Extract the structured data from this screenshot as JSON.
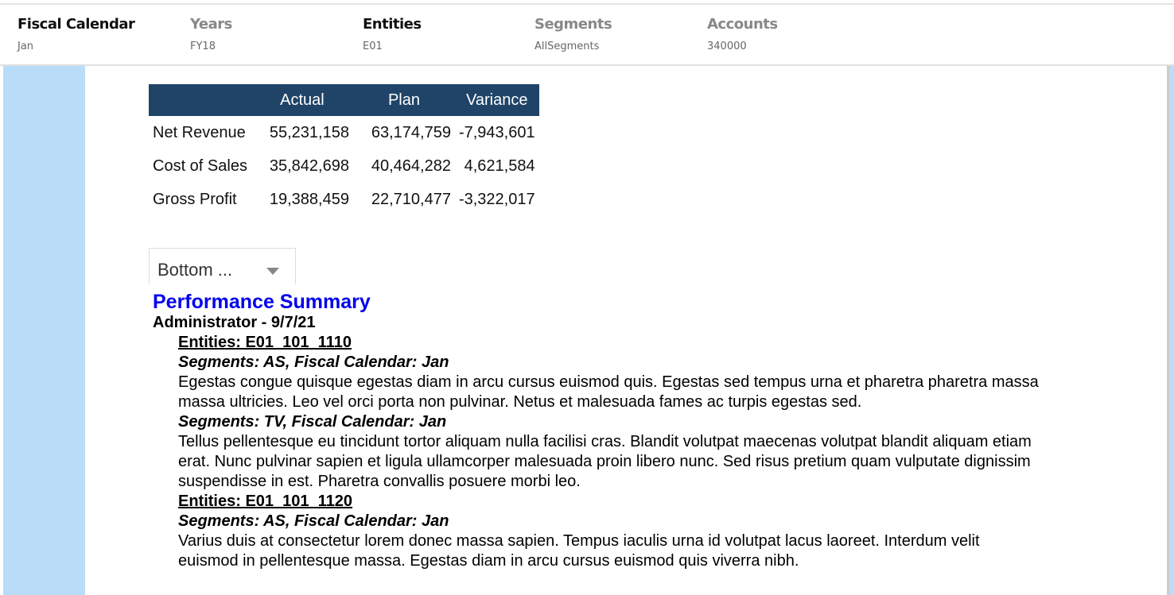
{
  "pov": [
    {
      "label": "Fiscal Calendar",
      "value": "Jan",
      "active": true
    },
    {
      "label": "Years",
      "value": "FY18",
      "active": false
    },
    {
      "label": "Entities",
      "value": "E01",
      "active": true
    },
    {
      "label": "Segments",
      "value": "AllSegments",
      "active": false
    },
    {
      "label": "Accounts",
      "value": "340000",
      "active": false
    }
  ],
  "table": {
    "headers": [
      "",
      "Actual",
      "Plan",
      "Variance"
    ],
    "rows": [
      [
        "Net Revenue",
        "55,231,158",
        "63,174,759",
        "-7,943,601"
      ],
      [
        "Cost of Sales",
        "35,842,698",
        "40,464,282",
        "4,621,584"
      ],
      [
        "Gross Profit",
        "19,388,459",
        "22,710,477",
        "-3,322,017"
      ]
    ]
  },
  "dropdown": {
    "value": "Bottom ..."
  },
  "summary": {
    "title": "Performance Summary",
    "author": "Administrator - 9/7/21",
    "entities": [
      {
        "heading": "Entities: E01_101_1110",
        "segments": [
          {
            "heading": "Segments: AS, Fiscal Calendar: Jan",
            "text": "Egestas congue quisque egestas diam in arcu cursus euismod quis. Egestas sed tempus urna et pharetra pharetra massa massa ultricies. Leo vel orci porta non pulvinar. Netus et malesuada fames ac turpis egestas sed."
          },
          {
            "heading": "Segments: TV, Fiscal Calendar: Jan",
            "text": "Tellus pellentesque eu tincidunt tortor aliquam nulla facilisi cras. Blandit volutpat maecenas volutpat blandit aliquam etiam erat. Nunc pulvinar sapien et ligula ullamcorper malesuada proin libero nunc. Sed risus pretium quam vulputate dignissim suspendisse in est. Pharetra convallis posuere morbi leo."
          }
        ]
      },
      {
        "heading": "Entities: E01_101_1120",
        "segments": [
          {
            "heading": "Segments: AS, Fiscal Calendar: Jan",
            "text": "Varius duis at consectetur lorem donec massa sapien. Tempus iaculis urna id volutpat lacus laoreet. Interdum velit euismod in pellentesque massa. Egestas diam in arcu cursus euismod quis viverra nibh."
          }
        ]
      }
    ]
  }
}
